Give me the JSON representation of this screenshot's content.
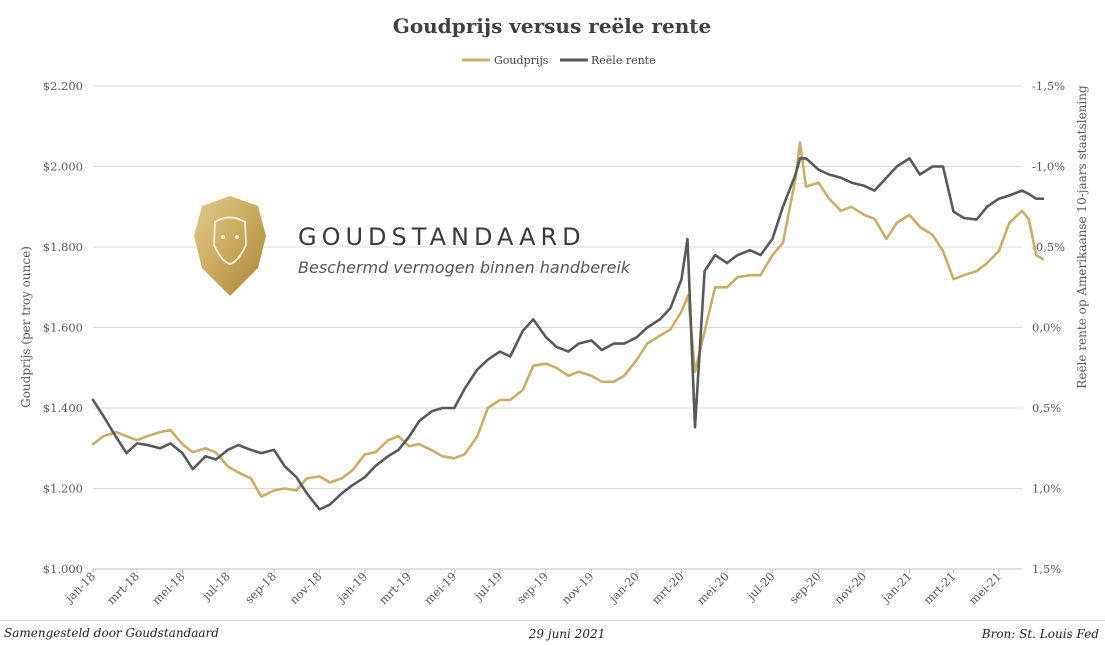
{
  "chart_data": {
    "type": "line",
    "title": "Goudprijs versus reële rente",
    "ylabel_left": "Goudprijs (per troy ounce)",
    "ylabel_right": "Reële rente op Amerikaanse 10-jaars staatslening",
    "ylim_left": [
      1000,
      2200
    ],
    "ylim_right": [
      1.5,
      -1.5
    ],
    "right_axis_inverted": true,
    "yticks_left": [
      "$1.000",
      "$1.200",
      "$1.400",
      "$1.600",
      "$1.800",
      "$2.000",
      "$2.200"
    ],
    "yticks_right": [
      "1,5%",
      "1,0%",
      "0,5%",
      "0,0%",
      "-0,5%",
      "-1,0%",
      "-1,5%"
    ],
    "xticks": [
      "jan-18",
      "mrt-18",
      "mei-18",
      "jul-18",
      "sep-18",
      "nov-18",
      "jan-19",
      "mrt-19",
      "mei-19",
      "jul-19",
      "sep-19",
      "nov-19",
      "jan-20",
      "mrt-20",
      "mei-20",
      "jul-20",
      "sep-20",
      "nov-20",
      "jan-21",
      "mrt-21",
      "mei-21"
    ],
    "x_domain": [
      "2018-01",
      "2021-06"
    ],
    "grid": true,
    "legend_position": "top",
    "series": [
      {
        "name": "Goudprijs",
        "axis": "left",
        "color": "#C9AE6A",
        "x": [
          "2018-01-01",
          "2018-01-15",
          "2018-02-01",
          "2018-02-15",
          "2018-03-01",
          "2018-03-15",
          "2018-04-01",
          "2018-04-15",
          "2018-05-01",
          "2018-05-15",
          "2018-06-01",
          "2018-06-15",
          "2018-07-01",
          "2018-07-15",
          "2018-08-01",
          "2018-08-15",
          "2018-09-01",
          "2018-09-15",
          "2018-10-01",
          "2018-10-15",
          "2018-11-01",
          "2018-11-15",
          "2018-12-01",
          "2018-12-15",
          "2019-01-01",
          "2019-01-15",
          "2019-02-01",
          "2019-02-15",
          "2019-03-01",
          "2019-03-15",
          "2019-04-01",
          "2019-04-15",
          "2019-05-01",
          "2019-05-15",
          "2019-06-01",
          "2019-06-15",
          "2019-07-01",
          "2019-07-15",
          "2019-08-01",
          "2019-08-15",
          "2019-09-01",
          "2019-09-15",
          "2019-10-01",
          "2019-10-15",
          "2019-11-01",
          "2019-11-15",
          "2019-12-01",
          "2019-12-15",
          "2020-01-01",
          "2020-01-15",
          "2020-02-01",
          "2020-02-15",
          "2020-03-01",
          "2020-03-10",
          "2020-03-19",
          "2020-04-01",
          "2020-04-15",
          "2020-05-01",
          "2020-05-15",
          "2020-06-01",
          "2020-06-15",
          "2020-07-01",
          "2020-07-15",
          "2020-08-01",
          "2020-08-07",
          "2020-08-15",
          "2020-09-01",
          "2020-09-15",
          "2020-10-01",
          "2020-10-15",
          "2020-11-01",
          "2020-11-15",
          "2020-12-01",
          "2020-12-15",
          "2021-01-01",
          "2021-01-15",
          "2021-02-01",
          "2021-02-15",
          "2021-03-01",
          "2021-03-15",
          "2021-04-01",
          "2021-04-15",
          "2021-05-01",
          "2021-05-15",
          "2021-06-01",
          "2021-06-10",
          "2021-06-20",
          "2021-06-29"
        ],
        "values": [
          1310,
          1330,
          1340,
          1330,
          1320,
          1330,
          1340,
          1345,
          1310,
          1290,
          1300,
          1290,
          1255,
          1240,
          1225,
          1180,
          1195,
          1200,
          1195,
          1225,
          1230,
          1215,
          1225,
          1245,
          1285,
          1290,
          1320,
          1330,
          1305,
          1310,
          1295,
          1280,
          1275,
          1285,
          1330,
          1400,
          1420,
          1420,
          1445,
          1505,
          1510,
          1500,
          1480,
          1490,
          1480,
          1465,
          1465,
          1480,
          1520,
          1560,
          1580,
          1595,
          1640,
          1680,
          1490,
          1590,
          1700,
          1700,
          1725,
          1730,
          1730,
          1780,
          1810,
          1970,
          2060,
          1950,
          1960,
          1920,
          1890,
          1900,
          1880,
          1870,
          1820,
          1860,
          1880,
          1850,
          1830,
          1790,
          1720,
          1730,
          1740,
          1760,
          1790,
          1860,
          1890,
          1870,
          1780,
          1770
        ]
      },
      {
        "name": "Reële rente",
        "axis": "right",
        "color": "#595959",
        "x": [
          "2018-01-01",
          "2018-01-15",
          "2018-02-01",
          "2018-02-15",
          "2018-03-01",
          "2018-03-15",
          "2018-04-01",
          "2018-04-15",
          "2018-05-01",
          "2018-05-15",
          "2018-06-01",
          "2018-06-15",
          "2018-07-01",
          "2018-07-15",
          "2018-08-01",
          "2018-08-15",
          "2018-09-01",
          "2018-09-15",
          "2018-10-01",
          "2018-10-15",
          "2018-11-01",
          "2018-11-15",
          "2018-12-01",
          "2018-12-15",
          "2019-01-01",
          "2019-01-15",
          "2019-02-01",
          "2019-02-15",
          "2019-03-01",
          "2019-03-15",
          "2019-04-01",
          "2019-04-15",
          "2019-05-01",
          "2019-05-15",
          "2019-06-01",
          "2019-06-15",
          "2019-07-01",
          "2019-07-15",
          "2019-08-01",
          "2019-08-15",
          "2019-09-01",
          "2019-09-15",
          "2019-10-01",
          "2019-10-15",
          "2019-11-01",
          "2019-11-15",
          "2019-12-01",
          "2019-12-15",
          "2020-01-01",
          "2020-01-15",
          "2020-02-01",
          "2020-02-15",
          "2020-03-01",
          "2020-03-09",
          "2020-03-19",
          "2020-04-01",
          "2020-04-15",
          "2020-05-01",
          "2020-05-15",
          "2020-06-01",
          "2020-06-15",
          "2020-07-01",
          "2020-07-15",
          "2020-08-01",
          "2020-08-07",
          "2020-08-15",
          "2020-09-01",
          "2020-09-15",
          "2020-10-01",
          "2020-10-15",
          "2020-11-01",
          "2020-11-15",
          "2020-12-01",
          "2020-12-15",
          "2021-01-01",
          "2021-01-15",
          "2021-02-01",
          "2021-02-15",
          "2021-03-01",
          "2021-03-15",
          "2021-04-01",
          "2021-04-15",
          "2021-05-01",
          "2021-05-15",
          "2021-06-01",
          "2021-06-10",
          "2021-06-20",
          "2021-06-29"
        ],
        "values": [
          0.45,
          0.55,
          0.68,
          0.78,
          0.72,
          0.73,
          0.75,
          0.72,
          0.78,
          0.88,
          0.8,
          0.82,
          0.76,
          0.73,
          0.76,
          0.78,
          0.76,
          0.86,
          0.93,
          1.03,
          1.13,
          1.1,
          1.03,
          0.98,
          0.93,
          0.86,
          0.8,
          0.76,
          0.68,
          0.58,
          0.52,
          0.5,
          0.5,
          0.38,
          0.26,
          0.2,
          0.15,
          0.18,
          0.02,
          -0.05,
          0.06,
          0.12,
          0.15,
          0.1,
          0.08,
          0.14,
          0.1,
          0.1,
          0.06,
          0.0,
          -0.05,
          -0.12,
          -0.3,
          -0.55,
          0.62,
          -0.35,
          -0.45,
          -0.4,
          -0.45,
          -0.48,
          -0.45,
          -0.55,
          -0.75,
          -0.95,
          -1.05,
          -1.05,
          -0.98,
          -0.95,
          -0.93,
          -0.9,
          -0.88,
          -0.85,
          -0.93,
          -1.0,
          -1.05,
          -0.95,
          -1.0,
          -1.0,
          -0.72,
          -0.68,
          -0.67,
          -0.75,
          -0.8,
          -0.82,
          -0.85,
          -0.83,
          -0.8,
          -0.8
        ]
      }
    ]
  },
  "branding": {
    "wordmark": "GOUDSTANDAARD",
    "tagline": "Beschermd vermogen binnen handbereik"
  },
  "footer": {
    "left": "Samengesteld door Goudstandaard",
    "center": "29 juni 2021",
    "right": "Bron: St. Louis Fed"
  }
}
